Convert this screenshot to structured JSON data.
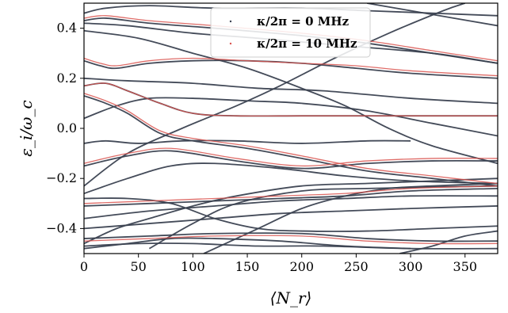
{
  "chart_data": {
    "type": "line",
    "title": "",
    "xlabel": "⟨N_r⟩",
    "ylabel": "ε_i/ω_c",
    "xlim": [
      0,
      380
    ],
    "ylim": [
      -0.5,
      0.5
    ],
    "xticks": [
      0,
      50,
      100,
      150,
      200,
      250,
      300,
      350
    ],
    "yticks": [
      -0.4,
      -0.2,
      0.0,
      0.2,
      0.4
    ],
    "xtick_labels": [
      "0",
      "50",
      "100",
      "150",
      "200",
      "250",
      "300",
      "350"
    ],
    "ytick_labels": [
      "−0.4",
      "−0.2",
      "0.0",
      "0.2",
      "0.4"
    ],
    "grid": false,
    "legend_position": "top-center",
    "series": [
      {
        "name": "κ/2π = 0 MHz",
        "color": "#3a4150",
        "curves": [
          [
            [
              0,
              0.46
            ],
            [
              20,
              0.48
            ],
            [
              60,
              0.49
            ],
            [
              120,
              0.48
            ],
            [
              200,
              0.48
            ],
            [
              260,
              0.47
            ],
            [
              320,
              0.46
            ],
            [
              380,
              0.45
            ]
          ],
          [
            [
              0,
              0.43
            ],
            [
              20,
              0.44
            ],
            [
              60,
              0.42
            ],
            [
              120,
              0.4
            ],
            [
              200,
              0.37
            ],
            [
              260,
              0.34
            ],
            [
              320,
              0.3
            ],
            [
              380,
              0.26
            ]
          ],
          [
            [
              0,
              0.42
            ],
            [
              40,
              0.41
            ],
            [
              100,
              0.38
            ],
            [
              160,
              0.36
            ],
            [
              240,
              0.33
            ],
            [
              320,
              0.3
            ],
            [
              380,
              0.26
            ]
          ],
          [
            [
              0,
              0.27
            ],
            [
              15,
              0.25
            ],
            [
              30,
              0.24
            ],
            [
              60,
              0.26
            ],
            [
              100,
              0.27
            ],
            [
              150,
              0.27
            ],
            [
              200,
              0.26
            ],
            [
              250,
              0.24
            ],
            [
              300,
              0.22
            ],
            [
              380,
              0.2
            ]
          ],
          [
            [
              0,
              0.2
            ],
            [
              40,
              0.19
            ],
            [
              100,
              0.18
            ],
            [
              160,
              0.16
            ],
            [
              220,
              0.15
            ],
            [
              300,
              0.12
            ],
            [
              380,
              0.1
            ]
          ],
          [
            [
              0,
              0.17
            ],
            [
              20,
              0.18
            ],
            [
              40,
              0.15
            ],
            [
              70,
              0.1
            ],
            [
              100,
              0.06
            ],
            [
              140,
              0.05
            ],
            [
              200,
              0.05
            ],
            [
              260,
              0.05
            ],
            [
              320,
              0.05
            ],
            [
              380,
              0.05
            ]
          ],
          [
            [
              0,
              0.04
            ],
            [
              30,
              0.09
            ],
            [
              60,
              0.12
            ],
            [
              100,
              0.12
            ],
            [
              150,
              0.11
            ],
            [
              200,
              0.1
            ],
            [
              260,
              0.07
            ],
            [
              320,
              0.02
            ],
            [
              380,
              -0.03
            ]
          ],
          [
            [
              0,
              0.13
            ],
            [
              20,
              0.1
            ],
            [
              40,
              0.06
            ],
            [
              70,
              -0.02
            ],
            [
              100,
              -0.05
            ],
            [
              150,
              -0.08
            ],
            [
              200,
              -0.12
            ],
            [
              260,
              -0.17
            ],
            [
              320,
              -0.2
            ],
            [
              380,
              -0.23
            ]
          ],
          [
            [
              0,
              -0.06
            ],
            [
              20,
              -0.05
            ],
            [
              50,
              -0.06
            ],
            [
              90,
              -0.05
            ],
            [
              140,
              -0.05
            ],
            [
              200,
              -0.06
            ],
            [
              260,
              -0.05
            ],
            [
              300,
              -0.05
            ]
          ],
          [
            [
              0,
              -0.15
            ],
            [
              40,
              -0.11
            ],
            [
              80,
              -0.09
            ],
            [
              140,
              -0.13
            ],
            [
              200,
              -0.16
            ],
            [
              260,
              -0.14
            ],
            [
              320,
              -0.13
            ],
            [
              380,
              -0.13
            ]
          ],
          [
            [
              0,
              -0.26
            ],
            [
              40,
              -0.2
            ],
            [
              80,
              -0.15
            ],
            [
              120,
              -0.14
            ],
            [
              180,
              -0.16
            ],
            [
              240,
              -0.19
            ],
            [
              300,
              -0.21
            ],
            [
              380,
              -0.22
            ]
          ],
          [
            [
              0,
              -0.31
            ],
            [
              60,
              -0.3
            ],
            [
              120,
              -0.29
            ],
            [
              180,
              -0.28
            ],
            [
              240,
              -0.27
            ],
            [
              300,
              -0.25
            ],
            [
              380,
              -0.24
            ]
          ],
          [
            [
              0,
              -0.36
            ],
            [
              60,
              -0.33
            ],
            [
              120,
              -0.31
            ],
            [
              180,
              -0.29
            ],
            [
              240,
              -0.28
            ],
            [
              300,
              -0.27
            ],
            [
              380,
              -0.27
            ]
          ],
          [
            [
              0,
              -0.4
            ],
            [
              60,
              -0.38
            ],
            [
              120,
              -0.36
            ],
            [
              180,
              -0.34
            ],
            [
              240,
              -0.33
            ],
            [
              300,
              -0.32
            ],
            [
              380,
              -0.31
            ]
          ],
          [
            [
              0,
              -0.28
            ],
            [
              40,
              -0.28
            ],
            [
              80,
              -0.3
            ],
            [
              120,
              -0.36
            ],
            [
              160,
              -0.4
            ],
            [
              200,
              -0.41
            ],
            [
              260,
              -0.41
            ],
            [
              320,
              -0.4
            ],
            [
              380,
              -0.39
            ]
          ],
          [
            [
              0,
              -0.44
            ],
            [
              60,
              -0.43
            ],
            [
              120,
              -0.42
            ],
            [
              200,
              -0.42
            ],
            [
              260,
              -0.44
            ],
            [
              320,
              -0.45
            ],
            [
              380,
              -0.45
            ]
          ],
          [
            [
              0,
              -0.47
            ],
            [
              50,
              -0.46
            ],
            [
              100,
              -0.46
            ],
            [
              160,
              -0.47
            ],
            [
              220,
              -0.47
            ],
            [
              300,
              -0.48
            ],
            [
              380,
              -0.48
            ]
          ],
          [
            [
              0,
              -0.48
            ],
            [
              40,
              -0.46
            ],
            [
              80,
              -0.44
            ],
            [
              120,
              -0.44
            ],
            [
              180,
              -0.45
            ],
            [
              240,
              -0.47
            ],
            [
              300,
              -0.48
            ]
          ],
          [
            [
              0,
              -0.46
            ],
            [
              30,
              -0.4
            ],
            [
              60,
              -0.36
            ],
            [
              100,
              -0.31
            ],
            [
              140,
              -0.27
            ],
            [
              200,
              -0.23
            ],
            [
              260,
              -0.22
            ],
            [
              320,
              -0.21
            ],
            [
              380,
              -0.2
            ]
          ],
          [
            [
              60,
              -0.48
            ],
            [
              100,
              -0.38
            ],
            [
              140,
              -0.3
            ],
            [
              200,
              -0.25
            ],
            [
              260,
              -0.24
            ],
            [
              380,
              -0.23
            ]
          ],
          [
            [
              0,
              -0.23
            ],
            [
              40,
              -0.1
            ],
            [
              90,
              0.0
            ],
            [
              140,
              0.09
            ],
            [
              180,
              0.17
            ],
            [
              230,
              0.28
            ],
            [
              280,
              0.38
            ],
            [
              330,
              0.47
            ],
            [
              350,
              0.5
            ]
          ],
          [
            [
              0,
              0.39
            ],
            [
              50,
              0.36
            ],
            [
              100,
              0.3
            ],
            [
              150,
              0.24
            ],
            [
              200,
              0.16
            ],
            [
              240,
              0.09
            ],
            [
              280,
              0.0
            ],
            [
              320,
              -0.07
            ],
            [
              380,
              -0.14
            ]
          ],
          [
            [
              110,
              -0.5
            ],
            [
              160,
              -0.4
            ],
            [
              200,
              -0.32
            ],
            [
              240,
              -0.27
            ],
            [
              280,
              -0.24
            ],
            [
              320,
              -0.23
            ],
            [
              380,
              -0.22
            ]
          ],
          [
            [
              290,
              -0.5
            ],
            [
              320,
              -0.47
            ],
            [
              350,
              -0.43
            ],
            [
              380,
              -0.41
            ]
          ],
          [
            [
              260,
              0.5
            ],
            [
              300,
              0.47
            ],
            [
              340,
              0.44
            ],
            [
              380,
              0.41
            ]
          ]
        ]
      },
      {
        "name": "κ/2π = 10 MHz",
        "color": "#d9534f",
        "curves": [
          [
            [
              0,
              0.44
            ],
            [
              20,
              0.45
            ],
            [
              60,
              0.43
            ],
            [
              120,
              0.41
            ],
            [
              200,
              0.38
            ],
            [
              260,
              0.35
            ],
            [
              320,
              0.31
            ],
            [
              380,
              0.27
            ]
          ],
          [
            [
              0,
              0.17
            ],
            [
              20,
              0.18
            ],
            [
              40,
              0.15
            ],
            [
              70,
              0.1
            ],
            [
              100,
              0.06
            ],
            [
              140,
              0.05
            ],
            [
              200,
              0.05
            ],
            [
              260,
              0.05
            ],
            [
              320,
              0.05
            ],
            [
              380,
              0.05
            ]
          ],
          [
            [
              0,
              0.14
            ],
            [
              20,
              0.11
            ],
            [
              40,
              0.07
            ],
            [
              70,
              -0.01
            ],
            [
              100,
              -0.04
            ],
            [
              150,
              -0.07
            ],
            [
              200,
              -0.11
            ],
            [
              260,
              -0.16
            ],
            [
              320,
              -0.19
            ],
            [
              380,
              -0.22
            ]
          ],
          [
            [
              0,
              -0.3
            ],
            [
              60,
              -0.29
            ],
            [
              120,
              -0.28
            ],
            [
              180,
              -0.27
            ],
            [
              240,
              -0.26
            ],
            [
              300,
              -0.24
            ],
            [
              380,
              -0.23
            ]
          ],
          [
            [
              0,
              -0.45
            ],
            [
              60,
              -0.44
            ],
            [
              120,
              -0.43
            ],
            [
              200,
              -0.43
            ],
            [
              260,
              -0.45
            ],
            [
              320,
              -0.46
            ],
            [
              380,
              -0.46
            ]
          ],
          [
            [
              0,
              -0.14
            ],
            [
              40,
              -0.1
            ],
            [
              80,
              -0.08
            ],
            [
              140,
              -0.12
            ],
            [
              200,
              -0.15
            ],
            [
              260,
              -0.13
            ],
            [
              320,
              -0.12
            ],
            [
              380,
              -0.12
            ]
          ],
          [
            [
              0,
              0.28
            ],
            [
              15,
              0.26
            ],
            [
              30,
              0.25
            ],
            [
              60,
              0.27
            ],
            [
              100,
              0.28
            ],
            [
              150,
              0.27
            ],
            [
              200,
              0.26
            ],
            [
              250,
              0.25
            ],
            [
              300,
              0.23
            ],
            [
              380,
              0.21
            ]
          ]
        ]
      }
    ]
  }
}
